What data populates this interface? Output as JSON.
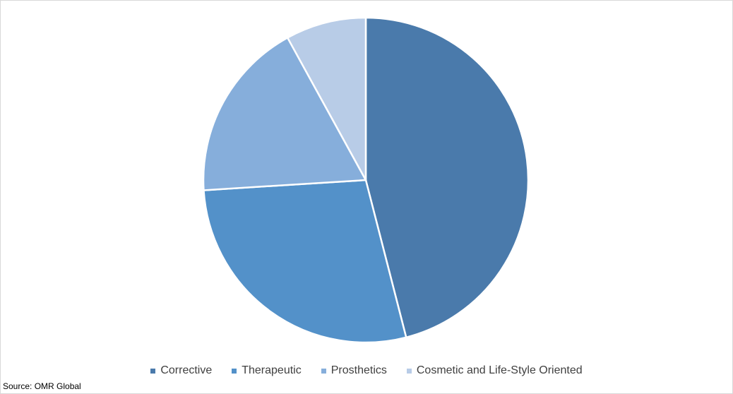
{
  "chart_data": {
    "type": "pie",
    "categories": [
      "Corrective",
      "Therapeutic",
      "Prosthetics",
      "Cosmetic and Life-Style Oriented"
    ],
    "values": [
      46,
      28,
      18,
      8
    ],
    "colors": [
      "#4a7aab",
      "#5391c9",
      "#86aedb",
      "#b8cce7"
    ],
    "start_angle_deg": 0,
    "direction": "clockwise",
    "legend_position": "bottom",
    "data_labels": false
  },
  "footer": {
    "source": "Source: OMR Global"
  }
}
